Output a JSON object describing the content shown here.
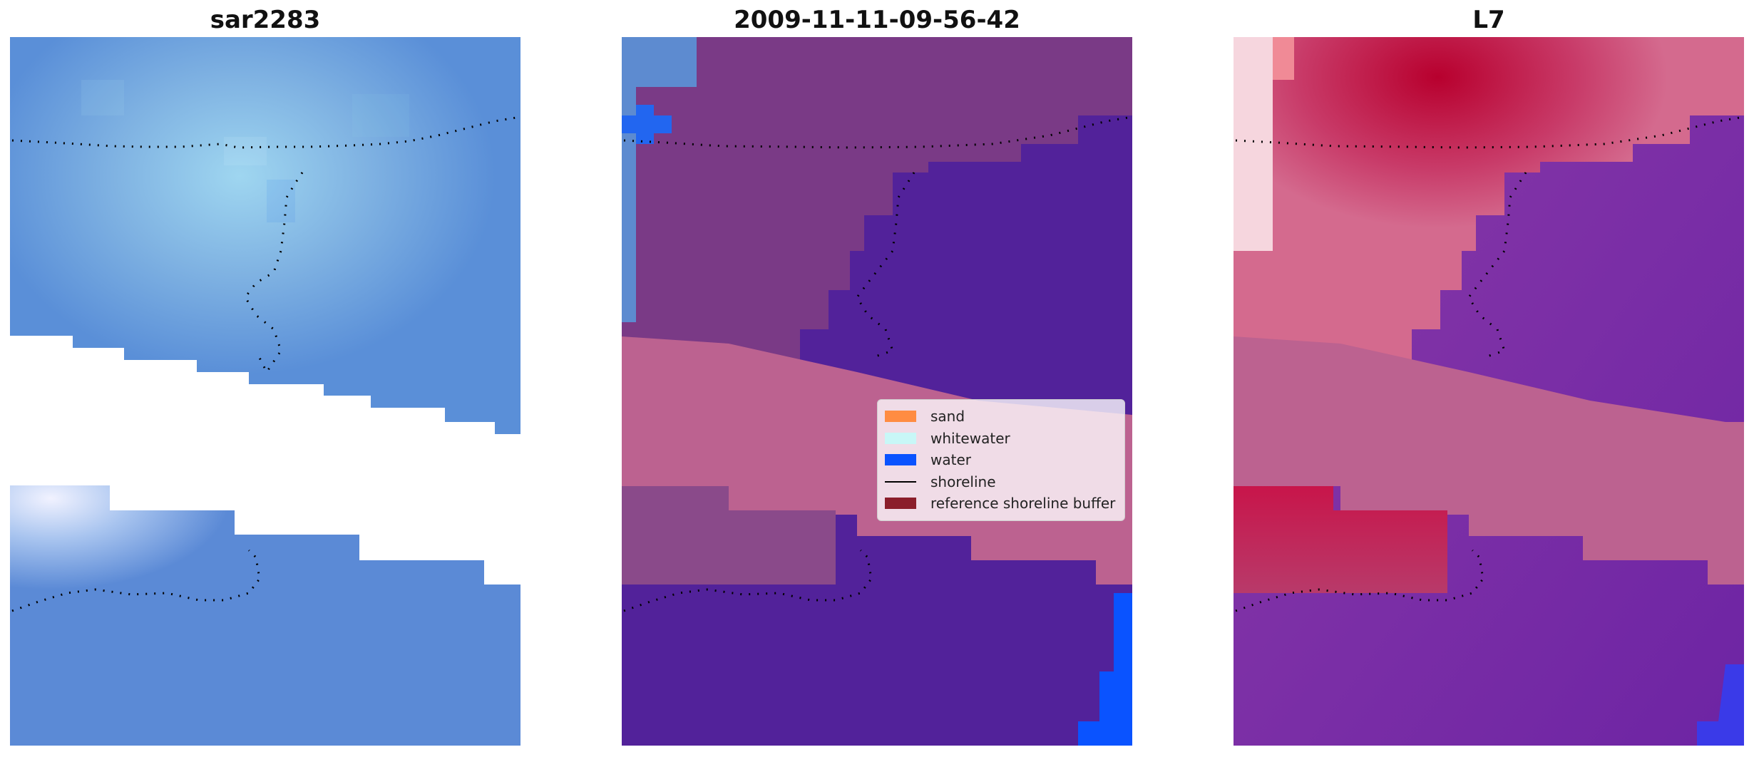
{
  "panels": [
    {
      "title": "sar2283"
    },
    {
      "title": "2009-11-11-09-56-42"
    },
    {
      "title": "L7"
    }
  ],
  "legend": {
    "placement": "center-right of middle panel",
    "items": [
      {
        "label": "sand",
        "color": "#ff8c42",
        "kind": "patch"
      },
      {
        "label": "whitewater",
        "color": "#c8f7f7",
        "kind": "patch"
      },
      {
        "label": "water",
        "color": "#0a53ff",
        "kind": "patch"
      },
      {
        "label": "shoreline",
        "color": "#000000",
        "kind": "line"
      },
      {
        "label": "reference shoreline buffer",
        "color": "#8b1e2b",
        "kind": "patch"
      }
    ]
  },
  "colors": {
    "rgb_water": "#4d7fd6",
    "class_water": "#52229a",
    "class_land": "#7a3a86",
    "buffer_band": "#bc6290",
    "ndwi_land": "#c2154a",
    "ndwi_water": "#7a2aa6"
  }
}
